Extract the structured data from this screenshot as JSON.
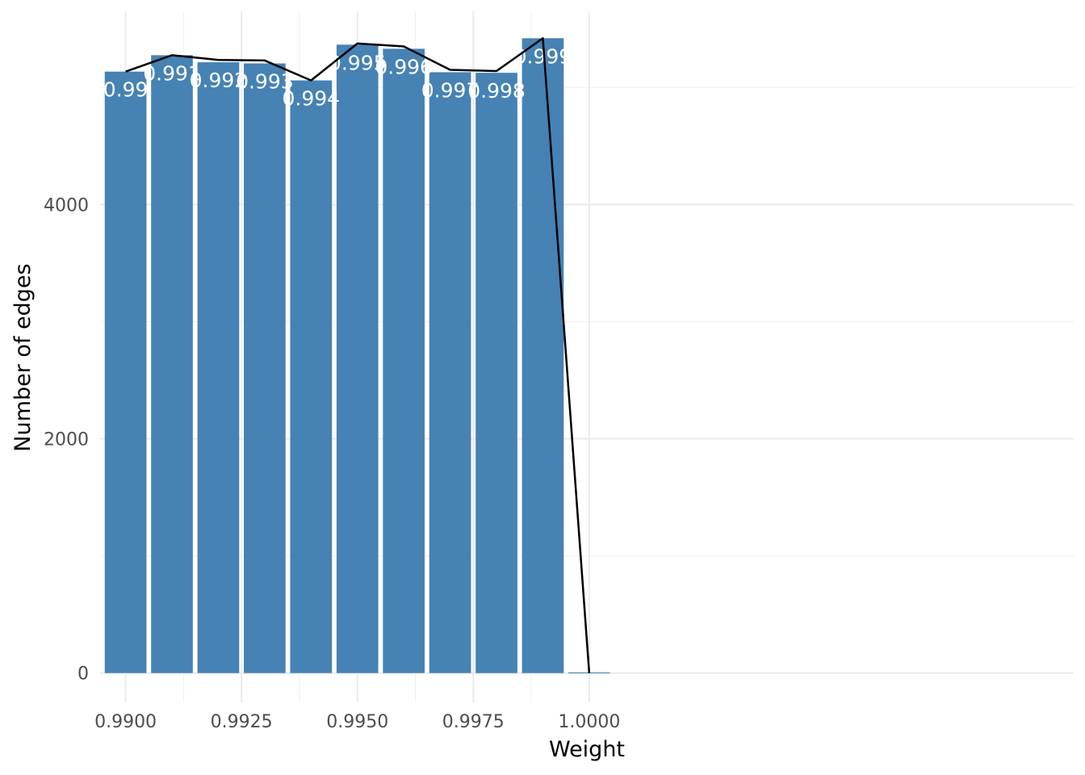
{
  "chart_data": {
    "type": "bar",
    "title": "",
    "xlabel": "Weight",
    "ylabel": "Number of edges",
    "grid": true,
    "legend": "none",
    "xlim": [
      0.98945,
      1.01045
    ],
    "ylim": [
      -250,
      5650
    ],
    "x_ticks": [
      0.99,
      0.9925,
      0.995,
      0.9975,
      1.0
    ],
    "x_tick_labels": [
      "0.9900",
      "0.9925",
      "0.9950",
      "0.9975",
      "1.0000"
    ],
    "x_minor_ticks": [
      0.99125,
      0.99375,
      0.99625,
      0.99875
    ],
    "y_ticks": [
      0,
      2000,
      4000
    ],
    "y_tick_labels": [
      "0",
      "2000",
      "4000"
    ],
    "y_minor_ticks": [
      1000,
      3000,
      5000
    ],
    "bar_width": 0.0009,
    "bar_color": "#4682b4",
    "line_color": "#000000",
    "x": [
      0.99,
      0.991,
      0.992,
      0.993,
      0.994,
      0.995,
      0.996,
      0.997,
      0.998,
      0.999,
      1.0
    ],
    "values": [
      5135,
      5275,
      5215,
      5205,
      5060,
      5365,
      5330,
      5130,
      5125,
      5420,
      5
    ],
    "bar_labels": [
      "0.99",
      "0.991",
      "0.992",
      "0.993",
      "0.994",
      "0.995",
      "0.996",
      "0.997",
      "0.998",
      "0.999",
      ""
    ],
    "series": [
      {
        "type": "bar",
        "values": [
          5135,
          5275,
          5215,
          5205,
          5060,
          5365,
          5330,
          5130,
          5125,
          5420,
          5
        ]
      },
      {
        "type": "line",
        "values": [
          5135,
          5275,
          5235,
          5230,
          5060,
          5375,
          5350,
          5150,
          5140,
          5420,
          0
        ]
      }
    ]
  }
}
